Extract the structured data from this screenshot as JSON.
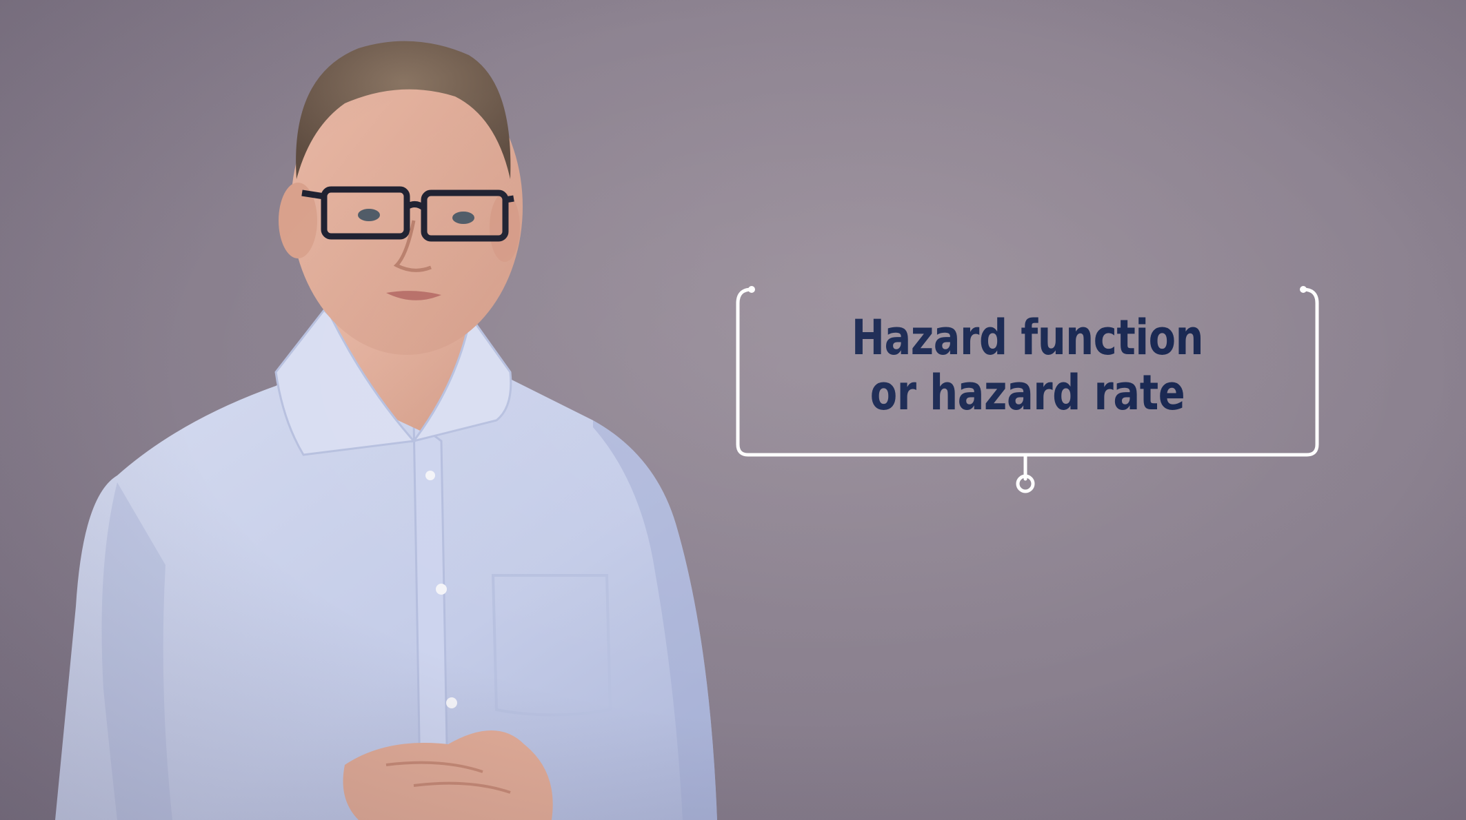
{
  "background_color": "#8c8290",
  "callout": {
    "line1": "Hazard function",
    "line2": "or hazard rate",
    "text_color": "#15244f",
    "frame_color": "#ffffff"
  },
  "presenter": {
    "shirt_color": "#c9d1ea",
    "glasses": "dark-rectangular"
  }
}
